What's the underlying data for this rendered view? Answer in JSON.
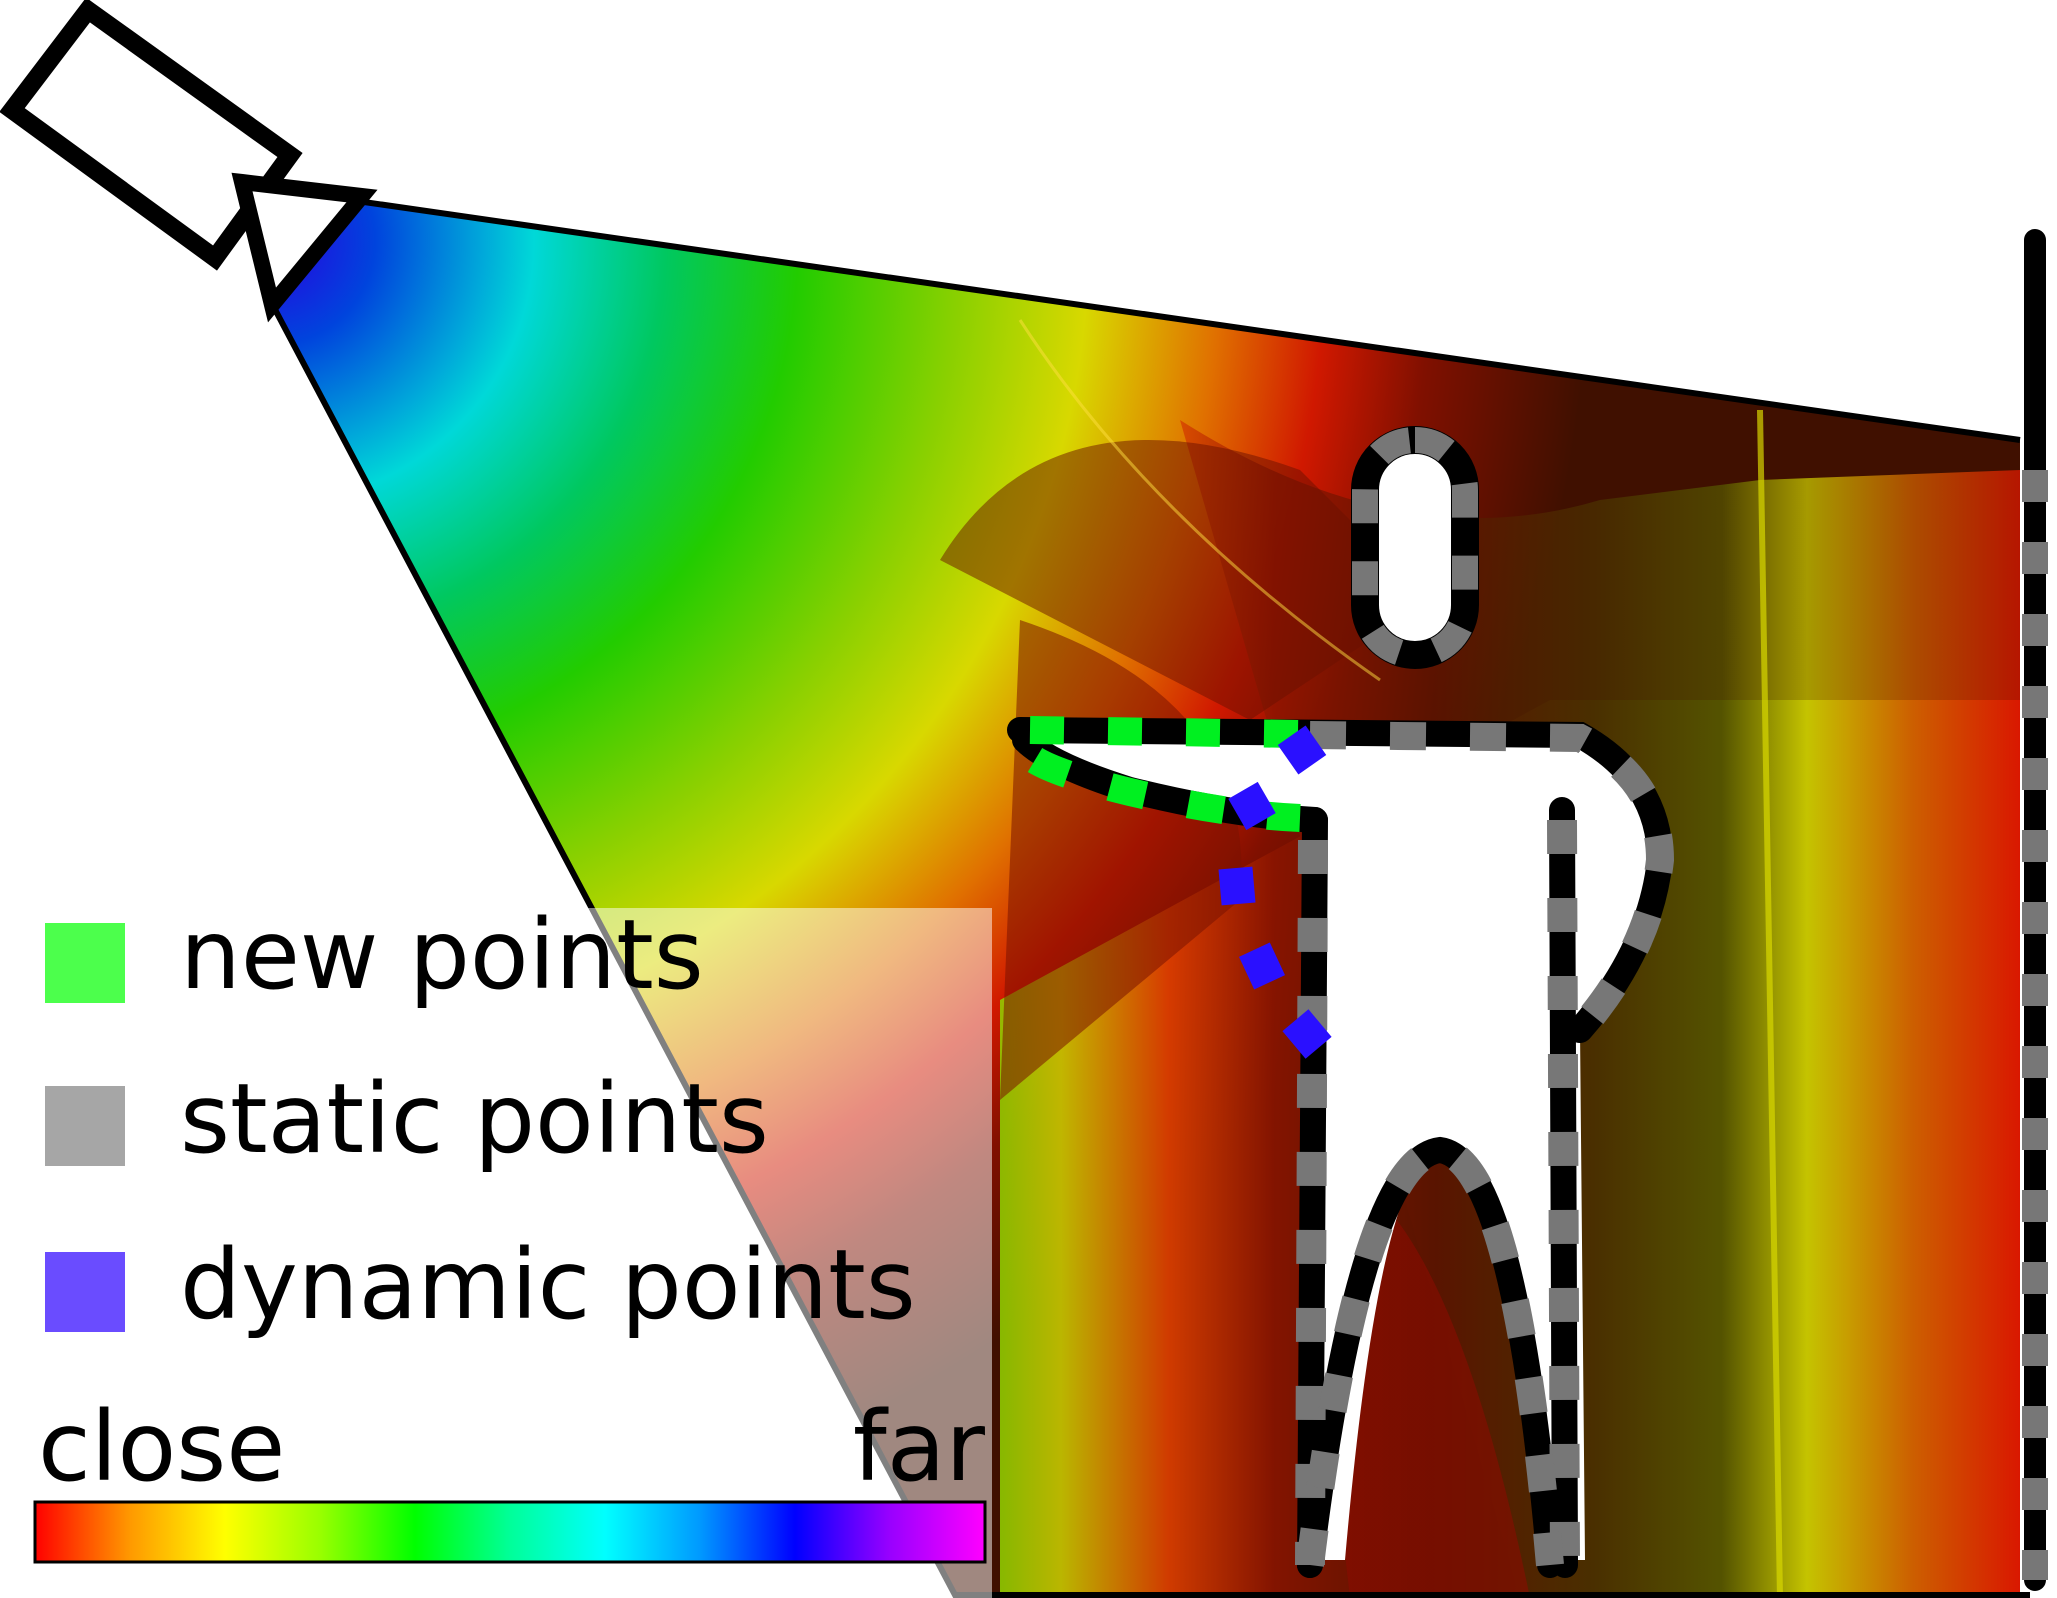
{
  "legend": {
    "items": [
      {
        "label": "new points",
        "color": "#4cff4c"
      },
      {
        "label": "static points",
        "color": "#a6a6a6"
      },
      {
        "label": "dynamic points",
        "color": "#6a4cff"
      }
    ]
  },
  "colorbar": {
    "label_left": "close",
    "label_right": "far",
    "stops": [
      "#ff0000",
      "#ff9900",
      "#ffff00",
      "#99ff00",
      "#00ff00",
      "#00ff99",
      "#00ffff",
      "#0099ff",
      "#0000ff",
      "#9900ff",
      "#ff00ff"
    ]
  },
  "point_colors": {
    "new": "#00f020",
    "static": "#777777",
    "dynamic": "#2a10ff",
    "outline": "#000000"
  }
}
